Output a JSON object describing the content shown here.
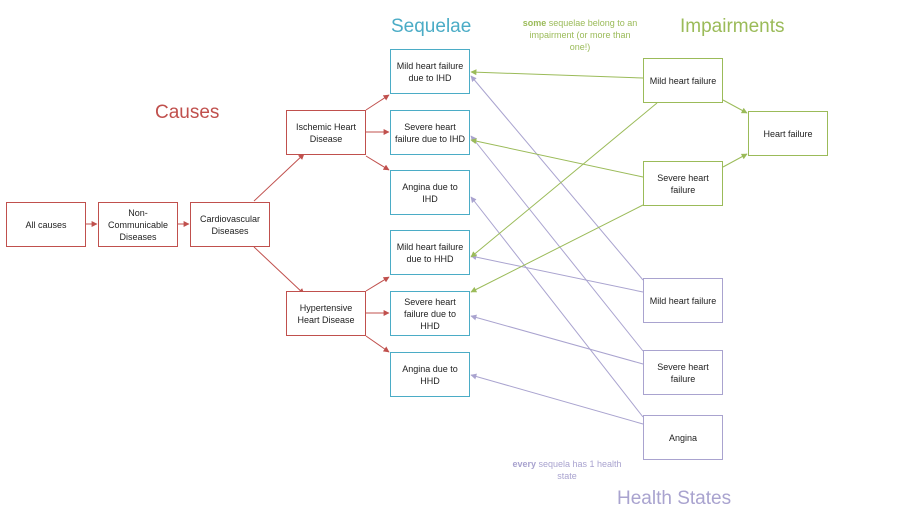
{
  "titles": {
    "causes": "Causes",
    "sequelae": "Sequelae",
    "impairments": "Impairments",
    "health_states": "Health States"
  },
  "notes": {
    "impairment_bold": "some",
    "impairment_rest": " sequelae belong to an impairment (or more than one!)",
    "health_bold": "every",
    "health_rest": " sequela has 1 health state"
  },
  "causes": {
    "all": "All causes",
    "ncd": "Non-Communicable Diseases",
    "cvd": "Cardiovascular Diseases",
    "ihd": "Ischemic Heart Disease",
    "hhd": "Hypertensive Heart Disease"
  },
  "sequelae": {
    "mild_ihd": "Mild heart failure due to IHD",
    "severe_ihd": "Severe heart failure due to IHD",
    "angina_ihd": "Angina due to IHD",
    "mild_hhd": "Mild heart failure due to HHD",
    "severe_hhd": "Severe heart failure due to HHD",
    "angina_hhd": "Angina due to HHD"
  },
  "impairments": {
    "mild": "Mild heart failure",
    "severe": "Severe heart failure",
    "hf": "Heart failure"
  },
  "health_states": {
    "mild": "Mild heart failure",
    "severe": "Severe heart failure",
    "angina": "Angina"
  },
  "colors": {
    "causes": "#c0504d",
    "sequelae": "#4bacc6",
    "impairments": "#9bbb59",
    "health_states": "#a9a3cf"
  }
}
